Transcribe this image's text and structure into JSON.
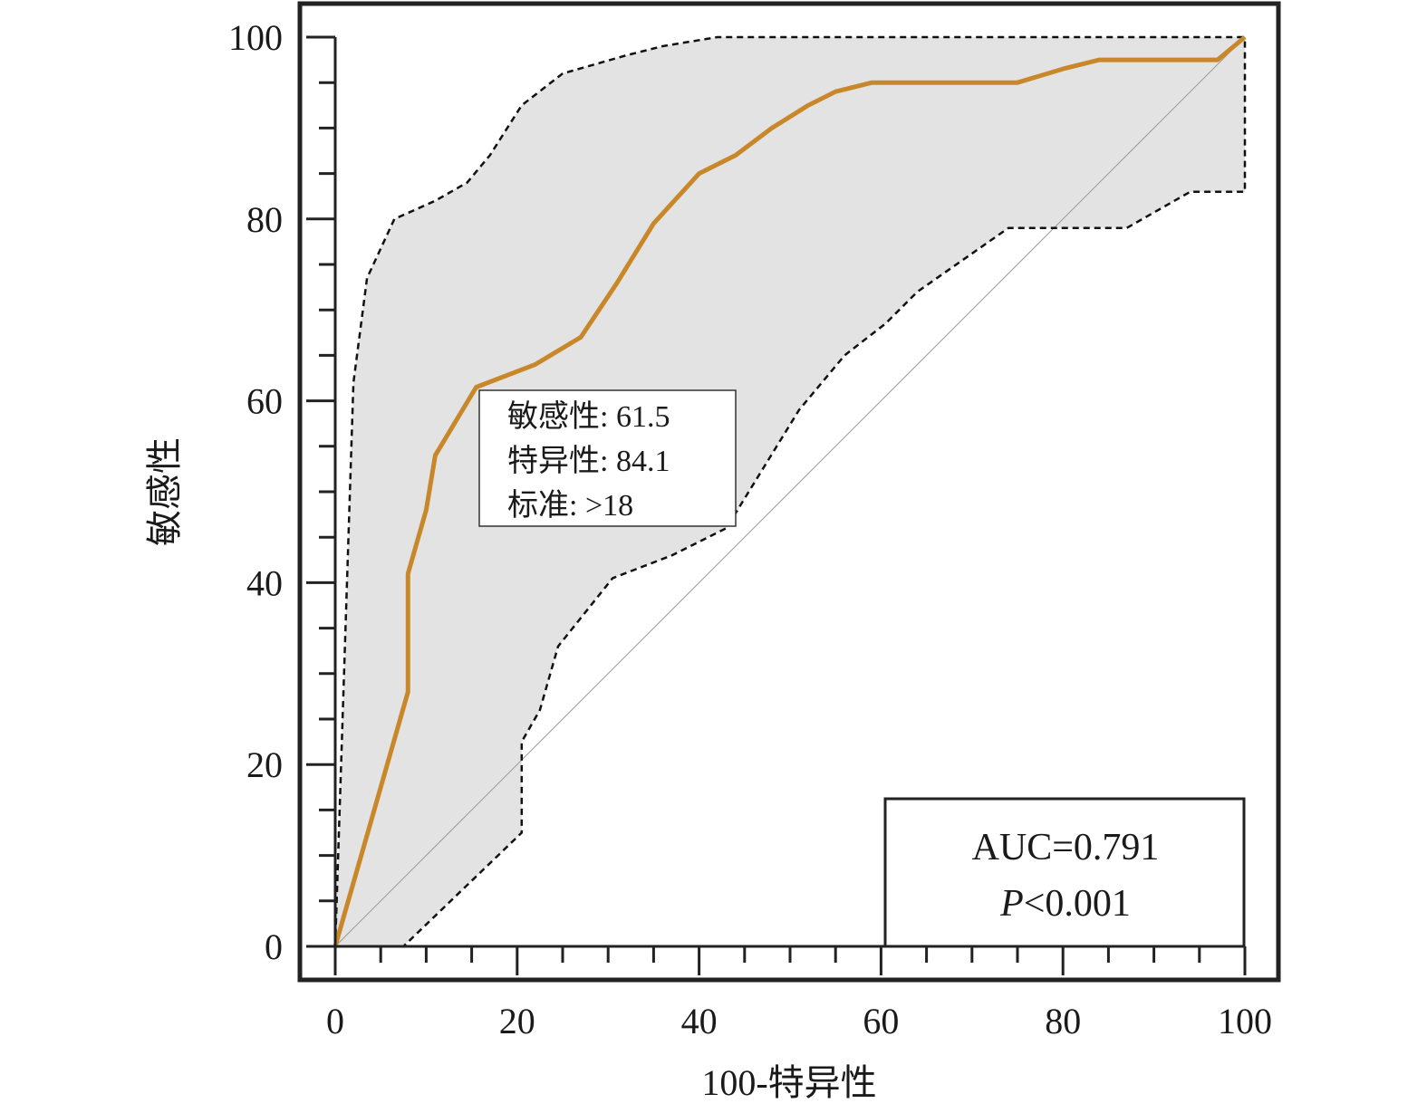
{
  "chart_data": {
    "type": "line",
    "title": "",
    "xlabel": "100-特异性",
    "ylabel": "敏感性",
    "xlim": [
      0,
      100
    ],
    "ylim": [
      0,
      100
    ],
    "x_ticks": [
      "0",
      "20",
      "40",
      "60",
      "80",
      "100"
    ],
    "y_ticks": [
      "0",
      "20",
      "40",
      "60",
      "80",
      "100"
    ],
    "grid": false,
    "colors": {
      "roc": "#C8882A",
      "ci_fill": "#e3e3e3",
      "ci_line": "#111111",
      "reference": "#9a9a9a",
      "frame": "#222222"
    },
    "roc_curve": [
      [
        0,
        0
      ],
      [
        4,
        14
      ],
      [
        8,
        28
      ],
      [
        8,
        41
      ],
      [
        10,
        48
      ],
      [
        11,
        54
      ],
      [
        15.5,
        61.5
      ],
      [
        22,
        64
      ],
      [
        27,
        67
      ],
      [
        31,
        73
      ],
      [
        35,
        79.5
      ],
      [
        40,
        85
      ],
      [
        44,
        87
      ],
      [
        48,
        90
      ],
      [
        52,
        92.5
      ],
      [
        55,
        94
      ],
      [
        59,
        95
      ],
      [
        75,
        95
      ],
      [
        80,
        96.5
      ],
      [
        84,
        97.5
      ],
      [
        97,
        97.5
      ],
      [
        100,
        100
      ]
    ],
    "ci_upper": [
      [
        0,
        0
      ],
      [
        2,
        62
      ],
      [
        3.5,
        73.5
      ],
      [
        6.5,
        80
      ],
      [
        11,
        82
      ],
      [
        14.5,
        84
      ],
      [
        17,
        87
      ],
      [
        20.5,
        92.5
      ],
      [
        25,
        96
      ],
      [
        32,
        98
      ],
      [
        36,
        99
      ],
      [
        42,
        100
      ],
      [
        100,
        100
      ]
    ],
    "ci_lower": [
      [
        0,
        0
      ],
      [
        7.5,
        0
      ],
      [
        20.5,
        12.5
      ],
      [
        20.5,
        22.5
      ],
      [
        22.5,
        26
      ],
      [
        24.5,
        33
      ],
      [
        30.5,
        40.5
      ],
      [
        37,
        43
      ],
      [
        43,
        46
      ],
      [
        51,
        59
      ],
      [
        56,
        65
      ],
      [
        60.5,
        68.5
      ],
      [
        64,
        72
      ],
      [
        74,
        79
      ],
      [
        87,
        79
      ],
      [
        94,
        83
      ],
      [
        100,
        83
      ],
      [
        100,
        100
      ]
    ],
    "reference_line": [
      [
        0,
        0
      ],
      [
        100,
        100
      ]
    ],
    "callout": {
      "lines": [
        "敏感性: 61.5",
        "特异性: 84.1",
        "标准: >18"
      ],
      "anchor": [
        15.5,
        61.5
      ]
    },
    "stats_box": {
      "auc": "AUC=0.791",
      "p_prefix": "P",
      "p_rest": "<0.001"
    }
  }
}
